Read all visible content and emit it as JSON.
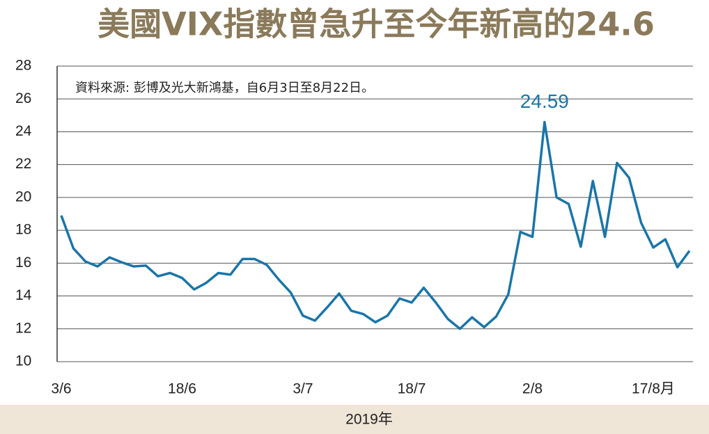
{
  "chart_data": {
    "type": "line",
    "title": "美國VIX指數曾急升至今年新高的24.6",
    "source": "資料來源: 彭博及光大新鴻基，自6月3日至8月22日。",
    "annotation": "24.59",
    "xlabel": "2019年",
    "categories": [
      "3/6",
      null,
      null,
      null,
      null,
      null,
      null,
      null,
      null,
      null,
      "18/6",
      null,
      null,
      null,
      null,
      null,
      null,
      null,
      null,
      null,
      "3/7",
      null,
      null,
      null,
      null,
      null,
      null,
      null,
      null,
      "18/7",
      null,
      null,
      null,
      null,
      null,
      null,
      null,
      null,
      null,
      "2/8",
      null,
      null,
      null,
      null,
      null,
      null,
      null,
      null,
      null,
      "17/8月",
      null,
      null,
      null
    ],
    "series": [
      {
        "name": "VIX",
        "color": "#1a75a8",
        "values": [
          18.9,
          16.9,
          16.1,
          15.8,
          16.35,
          16.05,
          15.8,
          15.85,
          15.2,
          15.4,
          15.1,
          14.4,
          14.8,
          15.4,
          15.3,
          16.25,
          16.25,
          15.9,
          15.0,
          14.2,
          12.8,
          12.5,
          13.3,
          14.15,
          13.1,
          12.9,
          12.4,
          12.8,
          13.85,
          13.6,
          14.5,
          13.6,
          12.6,
          12.0,
          12.7,
          12.1,
          12.75,
          14.1,
          17.9,
          17.6,
          24.59,
          20.0,
          19.6,
          17.0,
          21.0,
          17.6,
          22.1,
          21.2,
          18.45,
          16.95,
          17.45,
          15.75,
          16.75
        ]
      }
    ],
    "ylim": [
      10,
      28
    ],
    "yticks": [
      10,
      12,
      14,
      16,
      18,
      20,
      22,
      24,
      26,
      28
    ],
    "grid": true
  }
}
